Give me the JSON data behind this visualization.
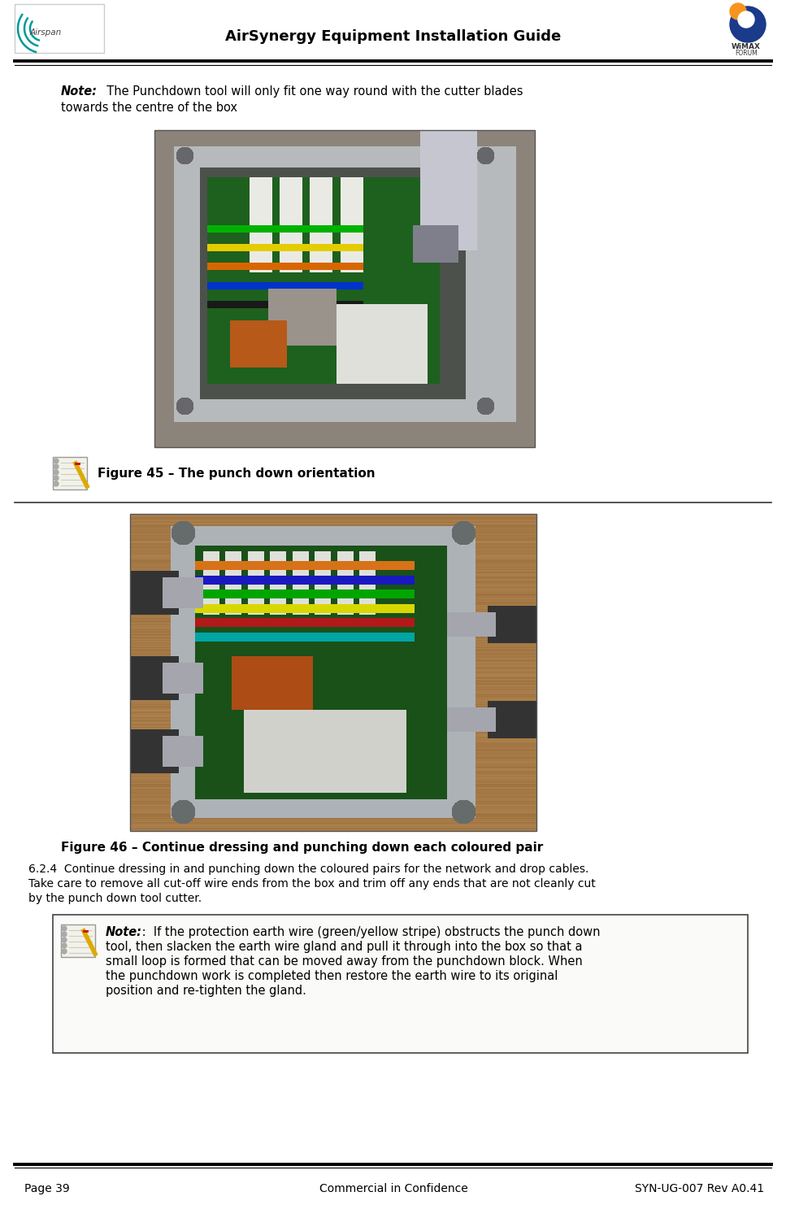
{
  "page_title": "AirSynergy Equipment Installation Guide",
  "page_number": "Page 39",
  "footer_center": "Commercial in Confidence",
  "footer_right": "SYN-UG-007 Rev A0.41",
  "note1_bold": "Note:",
  "note1_text": "  The Punchdown tool will only fit one way round with the cutter blades\ntowards the centre of the box",
  "fig45_caption": "Figure 45 – The punch down orientation",
  "fig46_caption": "Figure 46 – Continue dressing and punching down each coloured pair",
  "section_text": "6.2.4  Continue dressing in and punching down the coloured pairs for the network and drop cables.\nTake care to remove all cut-off wire ends from the box and trim off any ends that are not cleanly cut\nby the punch down tool cutter.",
  "note2_bold": "Note:",
  "note2_text": " :  If the protection earth wire (green/yellow stripe) obstructs the punch down\ntool, then slacken the earth wire gland and pull it through into the box so that a\nsmall loop is formed that can be moved away from the punchdown block. When\nthe punchdown work is completed then restore the earth wire to its original\nposition and re-tighten the gland.",
  "bg_color": "#ffffff",
  "text_color": "#000000"
}
